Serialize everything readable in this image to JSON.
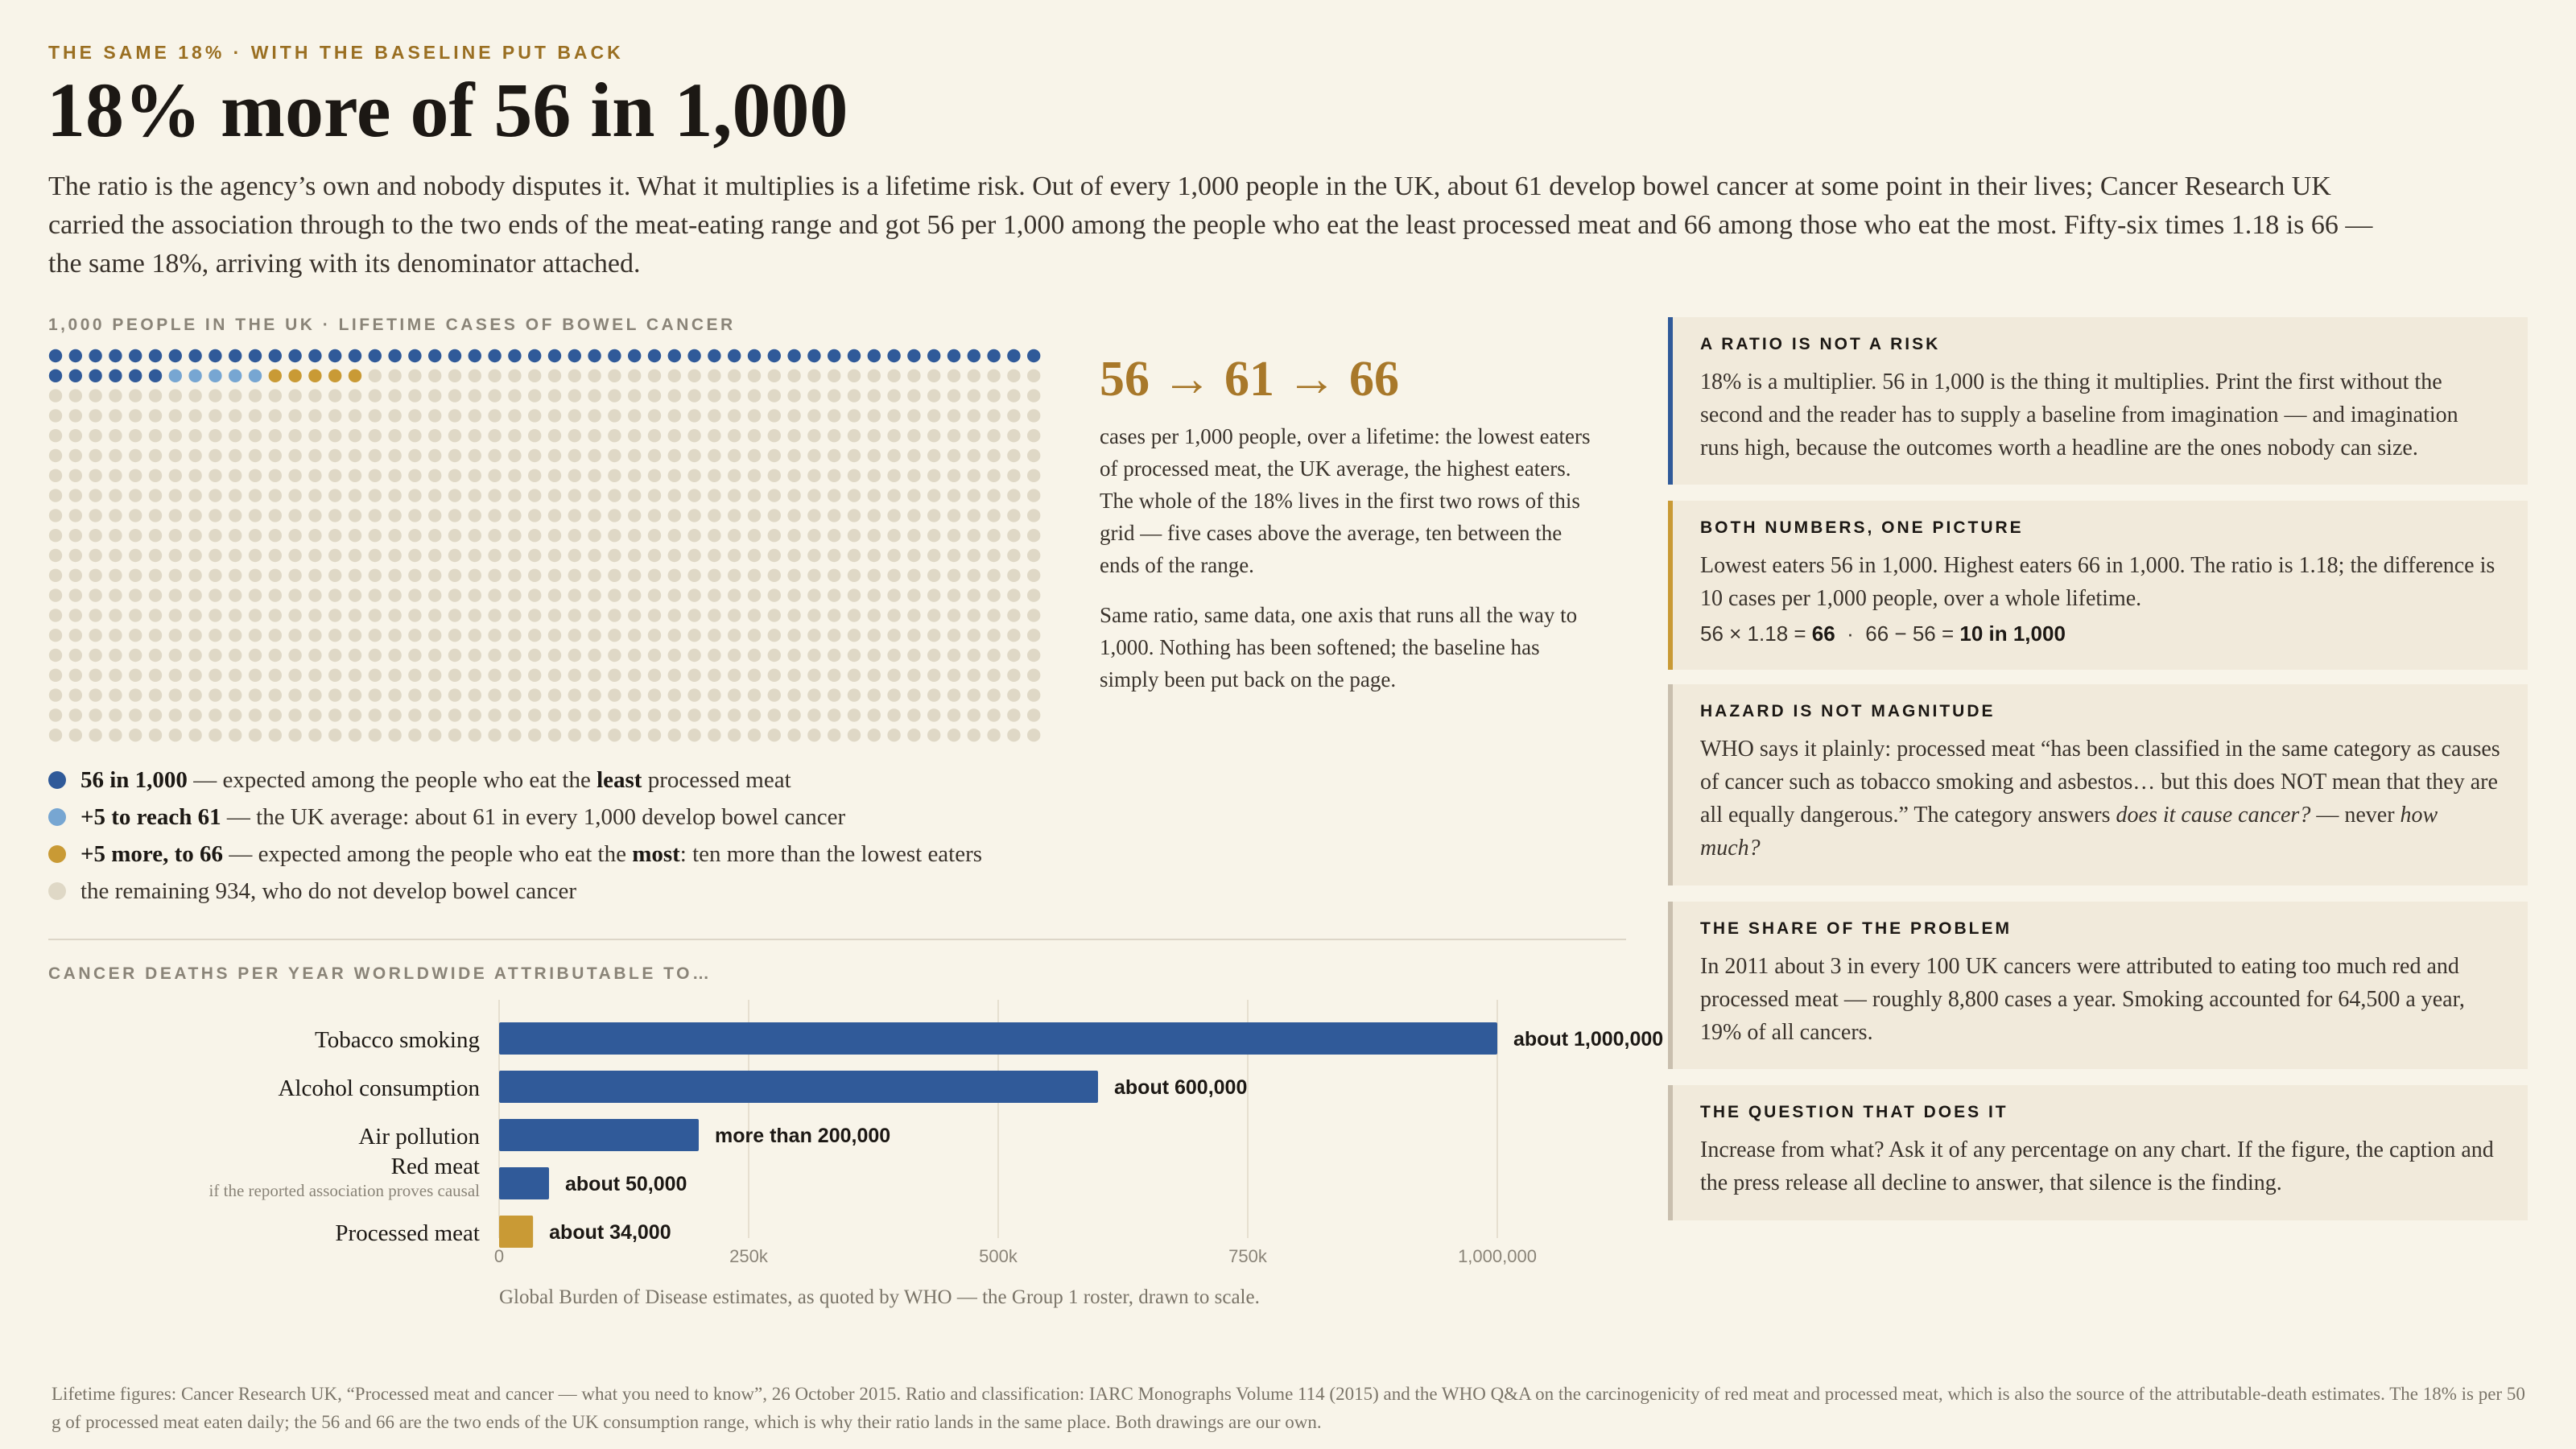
{
  "kicker": "THE SAME 18% · WITH THE BASELINE PUT BACK",
  "headline": "18% more of 56 in 1,000",
  "intro": "The ratio is the agency’s own and nobody disputes it. What it multiplies is a lifetime risk. Out of every 1,000 people in the UK, about 61 develop bowel cancer at some point in their lives; Cancer Research UK carried the association through to the two ends of the meat-eating range and got 56 per 1,000 among the people who eat the least processed meat and 66 among those who eat the most. Fifty-six times 1.18 is 66 — the same 18%, arriving with its denominator attached.",
  "colors": {
    "background": "#f8f4e9",
    "accent_gold": "#a8782a",
    "dark_blue": "#305a99",
    "light_blue": "#77a6d2",
    "gold": "#c99a35",
    "grey_dot": "#dfd8c6"
  },
  "waffle": {
    "eyebrow": "1,000 PEOPLE IN THE UK · LIFETIME CASES OF BOWEL CANCER",
    "flow": "56 → 61 → 66",
    "para1": "cases per 1,000 people, over a lifetime: the lowest eaters of processed meat, the UK average, the highest eaters. The whole of the 18% lives in the first two rows of this grid — five cases above the average, ten between the ends of the range.",
    "para2": "Same ratio, same data, one axis that runs all the way to 1,000. Nothing has been softened; the baseline has simply been put back on the page.",
    "legend": [
      {
        "strong": "56 in 1,000",
        "text_a": " — expected among the people who eat the ",
        "strong2": "least",
        "text_b": " processed meat",
        "color": "#305a99"
      },
      {
        "strong": "+5 to reach 61",
        "text_a": " — the UK average: about 61 in every 1,000 develop bowel cancer",
        "strong2": "",
        "text_b": "",
        "color": "#77a6d2"
      },
      {
        "strong": "+5 more, to 66",
        "text_a": " — expected among the people who eat the ",
        "strong2": "most",
        "text_b": ": ten more than the lowest eaters",
        "color": "#c99a35"
      },
      {
        "strong": "",
        "text_a": "the remaining 934, who do not develop bowel cancer",
        "strong2": "",
        "text_b": "",
        "color": "#dfd8c6"
      }
    ]
  },
  "bars": {
    "eyebrow": "CANCER DEATHS PER YEAR WORLDWIDE ATTRIBUTABLE TO…",
    "source": "Global Burden of Disease estimates, as quoted by WHO — the Group 1 roster, drawn to scale."
  },
  "chart_data": [
    {
      "type": "table",
      "title": "1,000 PEOPLE IN THE UK · LIFETIME CASES OF BOWEL CANCER",
      "total": 1000,
      "series": [
        {
          "name": "56 in 1,000",
          "value": 56,
          "color": "#305a99"
        },
        {
          "name": "+5 to reach 61",
          "value": 5,
          "color": "#77a6d2"
        },
        {
          "name": "+5 more, to 66",
          "value": 5,
          "color": "#c99a35"
        },
        {
          "name": "the remaining 934, who do not develop bowel cancer",
          "value": 934,
          "color": "#dfd8c6"
        }
      ]
    },
    {
      "type": "bar",
      "orientation": "horizontal",
      "title": "CANCER DEATHS PER YEAR WORLDWIDE ATTRIBUTABLE TO…",
      "categories": [
        "Tobacco smoking",
        "Alcohol consumption",
        "Air pollution",
        "Red meat",
        "Processed meat"
      ],
      "sublabels": [
        "",
        "",
        "",
        "if the reported association proves causal",
        ""
      ],
      "values": [
        1000000,
        600000,
        200000,
        50000,
        34000
      ],
      "value_labels": [
        "about 1,000,000",
        "about 600,000",
        "more than 200,000",
        "about 50,000",
        "about 34,000"
      ],
      "colors": [
        "#305a99",
        "#305a99",
        "#305a99",
        "#305a99",
        "#c99a35"
      ],
      "xlim": [
        0,
        1000000
      ],
      "xticks": [
        0,
        250000,
        500000,
        750000,
        1000000
      ],
      "xtick_labels": [
        "0",
        "250k",
        "500k",
        "750k",
        "1,000,000"
      ],
      "grid": true
    }
  ],
  "cards": {
    "ratio": {
      "title": "A RATIO IS NOT A RISK",
      "body": "18% is a multiplier. 56 in 1,000 is the thing it multiplies. Print the first without the second and the reader has to supply a baseline from imagination — and imagination runs high, because the outcomes worth a headline are the ones nobody can size."
    },
    "both": {
      "title": "BOTH NUMBERS, ONE PICTURE",
      "body": "Lowest eaters 56 in 1,000. Highest eaters 66 in 1,000. The ratio is 1.18; the difference is 10 cases per 1,000 people, over a whole lifetime.",
      "math_a": "56 × 1.18 = ",
      "math_b": "66",
      "math_c": "  ·  66 − 56 = ",
      "math_d": "10 in 1,000"
    },
    "hazard": {
      "title": "HAZARD IS NOT MAGNITUDE",
      "body_a": "WHO says it plainly: processed meat “has been classified in the same category as causes of cancer such as tobacco smoking and asbestos… but this does NOT mean that they are all equally dangerous.” The category answers ",
      "em_a": "does it cause cancer?",
      "body_b": " — never ",
      "em_b": "how much?"
    },
    "share": {
      "title": "THE SHARE OF THE PROBLEM",
      "body": "In 2011 about 3 in every 100 UK cancers were attributed to eating too much red and processed meat — roughly 8,800 cases a year. Smoking accounted for 64,500 a year, 19% of all cancers."
    },
    "question": {
      "title": "THE QUESTION THAT DOES IT",
      "body": "Increase from what? Ask it of any percentage on any chart. If the figure, the caption and the press release all decline to answer, that silence is the finding."
    }
  },
  "footer": "Lifetime figures: Cancer Research UK, “Processed meat and cancer — what you need to know”, 26 October 2015. Ratio and classification: IARC Monographs Volume 114 (2015) and the WHO Q&A on the carcinogenicity of red meat and processed meat, which is also the source of the attributable-death estimates. The 18% is per 50 g of processed meat eaten daily; the 56 and 66 are the two ends of the UK consumption range, which is why their ratio lands in the same place. Both drawings are our own."
}
